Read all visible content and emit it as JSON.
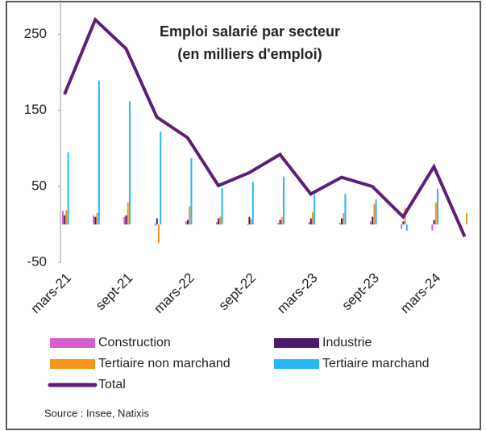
{
  "chart_data": {
    "type": "bar",
    "title": "Emploi salarié par secteur",
    "subtitle": "(en milliers d'emploi)",
    "source": "Source : Insee, Natixis",
    "categories": [
      "mars-21",
      null,
      "sept-21",
      null,
      "mars-22",
      null,
      "sept-22",
      null,
      "mars-23",
      null,
      "sept-23",
      null,
      "mars-24",
      null
    ],
    "ylim": [
      -50,
      300
    ],
    "yticks": [
      -50,
      50,
      150,
      250
    ],
    "series": [
      {
        "name": "Construction",
        "type": "bar",
        "color": "#d65fcf",
        "values": [
          18,
          12,
          10,
          -2,
          4,
          3,
          -1,
          2,
          3,
          2,
          4,
          -6,
          -8,
          0
        ]
      },
      {
        "name": "Industrie",
        "type": "bar",
        "color": "#4b1a6b",
        "values": [
          12,
          10,
          12,
          8,
          6,
          8,
          10,
          6,
          8,
          8,
          10,
          4,
          6,
          0
        ]
      },
      {
        "name": "Tertiaire non marchand",
        "type": "bar",
        "color": "#f7941d",
        "values": [
          19,
          15,
          29,
          -24,
          24,
          10,
          7,
          10,
          16,
          15,
          27,
          22,
          29,
          15
        ]
      },
      {
        "name": "Tertiaire marchand",
        "type": "bar",
        "color": "#29b6f6",
        "values": [
          95,
          189,
          162,
          122,
          87,
          48,
          56,
          63,
          39,
          40,
          33,
          -8,
          47,
          0
        ]
      },
      {
        "name": "Total",
        "type": "line",
        "color": "#5b1f7a",
        "values": [
          171,
          269,
          231,
          141,
          114,
          51,
          68,
          92,
          40,
          62,
          50,
          10,
          76,
          -16
        ]
      }
    ]
  }
}
